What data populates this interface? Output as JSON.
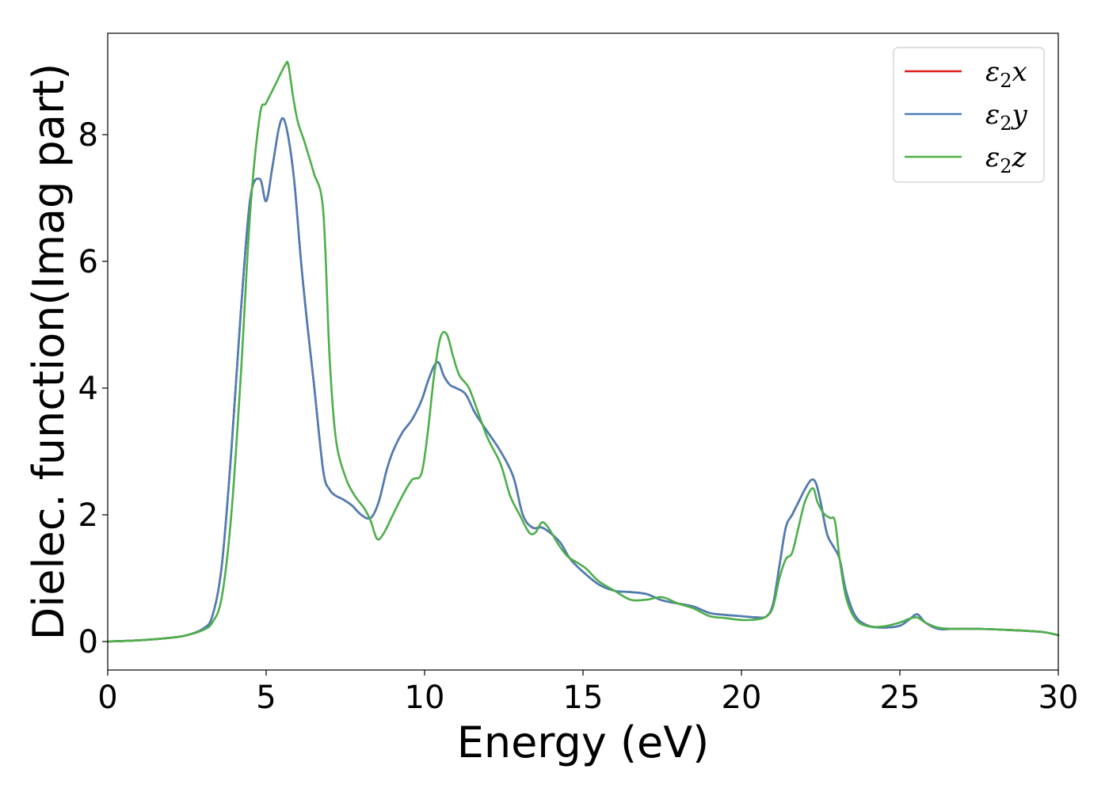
{
  "chart_data": {
    "type": "line",
    "xlabel": "Energy (eV)",
    "ylabel": "Dielec. function(Imag part)",
    "xlim": [
      0,
      30
    ],
    "ylim": [
      -0.45,
      9.6
    ],
    "xticks": [
      0,
      5,
      10,
      15,
      20,
      25,
      30
    ],
    "xtick_labels": [
      "0",
      "5",
      "10",
      "15",
      "20",
      "25",
      "30"
    ],
    "yticks": [
      0,
      2,
      4,
      6,
      8
    ],
    "ytick_labels": [
      "0",
      "2",
      "4",
      "6",
      "8"
    ],
    "grid": false,
    "legend_position": "top-right",
    "series": [
      {
        "name": "ε₂x",
        "legend_base": "ε",
        "legend_sub": "2",
        "legend_tail": "x",
        "color": "#e41a1c",
        "x": [
          0,
          1,
          2,
          2.5,
          3,
          3.3,
          3.6,
          3.9,
          4.2,
          4.5,
          4.8,
          5.0,
          5.2,
          5.4,
          5.55,
          5.72,
          5.9,
          6.1,
          6.3,
          6.5,
          6.8,
          7.0,
          7.2,
          7.4,
          7.7,
          8.0,
          8.3,
          8.55,
          8.8,
          9.0,
          9.3,
          9.6,
          9.9,
          10.1,
          10.3,
          10.45,
          10.6,
          10.8,
          11.0,
          11.3,
          11.6,
          12.0,
          12.4,
          12.8,
          13.1,
          13.4,
          13.7,
          14.0,
          14.3,
          14.6,
          15.0,
          15.5,
          16.0,
          16.5,
          17.0,
          17.5,
          18.0,
          18.5,
          19.0,
          19.5,
          20.0,
          20.5,
          20.8,
          21.0,
          21.2,
          21.4,
          21.6,
          21.8,
          22.0,
          22.2,
          22.35,
          22.5,
          22.7,
          22.9,
          23.1,
          23.3,
          23.6,
          24.0,
          24.5,
          25.0,
          25.3,
          25.55,
          25.8,
          26.2,
          26.7,
          27.5,
          28.5,
          29.5,
          30
        ],
        "values": [
          0,
          0.02,
          0.06,
          0.1,
          0.2,
          0.4,
          1.2,
          3.0,
          5.2,
          7.0,
          7.3,
          6.95,
          7.5,
          8.1,
          8.25,
          7.9,
          7.2,
          6.0,
          5.0,
          4.1,
          2.7,
          2.4,
          2.3,
          2.25,
          2.15,
          2.0,
          1.95,
          2.2,
          2.7,
          3.0,
          3.3,
          3.5,
          3.8,
          4.1,
          4.35,
          4.4,
          4.2,
          4.05,
          4.0,
          3.9,
          3.6,
          3.3,
          3.0,
          2.6,
          2.0,
          1.8,
          1.8,
          1.7,
          1.55,
          1.3,
          1.1,
          0.9,
          0.8,
          0.78,
          0.75,
          0.65,
          0.6,
          0.55,
          0.45,
          0.42,
          0.4,
          0.38,
          0.4,
          0.6,
          1.2,
          1.8,
          2.0,
          2.2,
          2.4,
          2.55,
          2.5,
          2.2,
          1.7,
          1.5,
          1.3,
          0.8,
          0.4,
          0.25,
          0.22,
          0.25,
          0.35,
          0.43,
          0.3,
          0.2,
          0.2,
          0.2,
          0.18,
          0.15,
          0.1
        ]
      },
      {
        "name": "ε₂y",
        "legend_base": "ε",
        "legend_sub": "2",
        "legend_tail": "y",
        "color": "#4a7fb5",
        "x": [
          0,
          1,
          2,
          2.5,
          3,
          3.3,
          3.6,
          3.9,
          4.2,
          4.5,
          4.8,
          5.0,
          5.2,
          5.4,
          5.55,
          5.72,
          5.9,
          6.1,
          6.3,
          6.5,
          6.8,
          7.0,
          7.2,
          7.4,
          7.7,
          8.0,
          8.3,
          8.55,
          8.8,
          9.0,
          9.3,
          9.6,
          9.9,
          10.1,
          10.3,
          10.45,
          10.6,
          10.8,
          11.0,
          11.3,
          11.6,
          12.0,
          12.4,
          12.8,
          13.1,
          13.4,
          13.7,
          14.0,
          14.3,
          14.6,
          15.0,
          15.5,
          16.0,
          16.5,
          17.0,
          17.5,
          18.0,
          18.5,
          19.0,
          19.5,
          20.0,
          20.5,
          20.8,
          21.0,
          21.2,
          21.4,
          21.6,
          21.8,
          22.0,
          22.2,
          22.35,
          22.5,
          22.7,
          22.9,
          23.1,
          23.3,
          23.6,
          24.0,
          24.5,
          25.0,
          25.3,
          25.55,
          25.8,
          26.2,
          26.7,
          27.5,
          28.5,
          29.5,
          30
        ],
        "values": [
          0,
          0.02,
          0.06,
          0.1,
          0.2,
          0.4,
          1.2,
          3.0,
          5.2,
          7.0,
          7.3,
          6.95,
          7.5,
          8.1,
          8.25,
          7.9,
          7.2,
          6.0,
          5.0,
          4.1,
          2.7,
          2.4,
          2.3,
          2.25,
          2.15,
          2.0,
          1.95,
          2.2,
          2.7,
          3.0,
          3.3,
          3.5,
          3.8,
          4.1,
          4.35,
          4.4,
          4.2,
          4.05,
          4.0,
          3.9,
          3.6,
          3.3,
          3.0,
          2.6,
          2.0,
          1.8,
          1.8,
          1.7,
          1.55,
          1.3,
          1.1,
          0.9,
          0.8,
          0.78,
          0.75,
          0.65,
          0.6,
          0.55,
          0.45,
          0.42,
          0.4,
          0.38,
          0.4,
          0.6,
          1.2,
          1.8,
          2.0,
          2.2,
          2.4,
          2.55,
          2.5,
          2.2,
          1.7,
          1.5,
          1.3,
          0.8,
          0.4,
          0.25,
          0.22,
          0.25,
          0.35,
          0.43,
          0.3,
          0.2,
          0.2,
          0.2,
          0.18,
          0.15,
          0.1
        ]
      },
      {
        "name": "ε₂z",
        "legend_base": "ε",
        "legend_sub": "2",
        "legend_tail": "z",
        "color": "#4daf4a",
        "x": [
          0,
          1,
          2,
          2.5,
          3,
          3.3,
          3.6,
          3.9,
          4.2,
          4.5,
          4.8,
          5.0,
          5.3,
          5.6,
          5.7,
          5.85,
          6.0,
          6.2,
          6.5,
          6.8,
          7.0,
          7.2,
          7.5,
          7.8,
          8.1,
          8.3,
          8.5,
          8.7,
          9.0,
          9.3,
          9.6,
          9.9,
          10.1,
          10.3,
          10.5,
          10.7,
          10.9,
          11.1,
          11.4,
          11.7,
          12.0,
          12.4,
          12.7,
          13.0,
          13.3,
          13.5,
          13.7,
          13.9,
          14.2,
          14.5,
          14.8,
          15.1,
          15.5,
          16.0,
          16.5,
          17.0,
          17.5,
          18.0,
          18.5,
          19.0,
          19.5,
          20.0,
          20.5,
          20.8,
          21.0,
          21.2,
          21.4,
          21.6,
          21.8,
          22.0,
          22.25,
          22.4,
          22.6,
          22.8,
          22.95,
          23.1,
          23.3,
          23.6,
          24.0,
          24.5,
          25.0,
          25.3,
          25.55,
          25.8,
          26.2,
          26.7,
          27.5,
          28.5,
          29.5,
          30
        ],
        "values": [
          0,
          0.02,
          0.06,
          0.1,
          0.18,
          0.3,
          0.7,
          2.0,
          4.2,
          6.8,
          8.3,
          8.5,
          8.8,
          9.1,
          9.1,
          8.6,
          8.2,
          7.9,
          7.4,
          6.8,
          4.5,
          3.2,
          2.6,
          2.3,
          2.1,
          1.9,
          1.62,
          1.7,
          2.0,
          2.3,
          2.55,
          2.65,
          3.3,
          4.2,
          4.8,
          4.85,
          4.5,
          4.2,
          4.0,
          3.6,
          3.2,
          2.8,
          2.3,
          2.0,
          1.72,
          1.72,
          1.88,
          1.8,
          1.55,
          1.35,
          1.25,
          1.15,
          0.95,
          0.8,
          0.66,
          0.66,
          0.7,
          0.6,
          0.52,
          0.4,
          0.37,
          0.34,
          0.35,
          0.4,
          0.55,
          1.0,
          1.3,
          1.4,
          1.8,
          2.2,
          2.42,
          2.2,
          2.02,
          1.95,
          1.9,
          1.3,
          0.7,
          0.35,
          0.24,
          0.24,
          0.3,
          0.36,
          0.38,
          0.3,
          0.22,
          0.2,
          0.2,
          0.18,
          0.15,
          0.1
        ]
      }
    ]
  }
}
